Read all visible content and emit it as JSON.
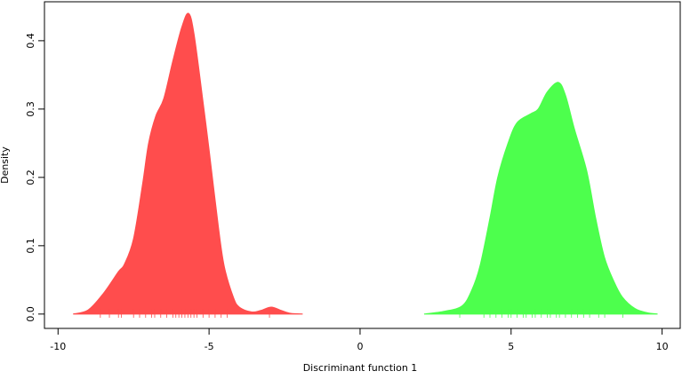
{
  "chart_data": {
    "type": "area",
    "xlabel": "Discriminant function 1",
    "ylabel": "Density",
    "xlim": [
      -10.45,
      10.6
    ],
    "ylim": [
      -0.021,
      0.457
    ],
    "xticks": [
      -10,
      -5,
      0,
      5,
      10
    ],
    "yticks": [
      {
        "value": 0,
        "label": "0.0"
      },
      0.1,
      0.2,
      0.3,
      0.4
    ],
    "series": [
      {
        "color": "#ff4d4d",
        "x": [
          -9.5,
          -9.0,
          -8.5,
          -8.0,
          -7.8,
          -7.5,
          -7.2,
          -7.0,
          -6.76,
          -6.5,
          -6.2,
          -5.9,
          -5.68,
          -5.5,
          -5.2,
          -5.0,
          -4.7,
          -4.5,
          -4.2,
          -4.0,
          -3.6,
          -3.3,
          -2.94,
          -2.6,
          -2.3,
          -1.9
        ],
        "values": [
          0.0,
          0.006,
          0.03,
          0.062,
          0.073,
          0.11,
          0.19,
          0.25,
          0.29,
          0.315,
          0.37,
          0.42,
          0.44,
          0.41,
          0.31,
          0.24,
          0.13,
          0.07,
          0.025,
          0.01,
          0.003,
          0.005,
          0.01,
          0.005,
          0.001,
          0.0
        ],
        "rug": [
          -8.6,
          -8.3,
          -8.0,
          -7.9,
          -7.5,
          -7.3,
          -7.1,
          -6.9,
          -6.8,
          -6.6,
          -6.4,
          -6.2,
          -6.1,
          -6.0,
          -5.9,
          -5.8,
          -5.7,
          -5.6,
          -5.5,
          -5.4,
          -5.2,
          -5.0,
          -4.8,
          -4.6,
          -4.4,
          -3.0
        ]
      },
      {
        "color": "#4dff4d",
        "x": [
          2.12,
          2.8,
          3.38,
          3.7,
          3.97,
          4.3,
          4.56,
          4.9,
          5.2,
          5.65,
          5.9,
          6.2,
          6.56,
          6.8,
          7.1,
          7.5,
          7.8,
          8.09,
          8.4,
          8.68,
          9.1,
          9.5,
          9.85
        ],
        "values": [
          0.0,
          0.004,
          0.012,
          0.035,
          0.07,
          0.14,
          0.2,
          0.25,
          0.28,
          0.293,
          0.3,
          0.325,
          0.339,
          0.32,
          0.27,
          0.21,
          0.14,
          0.083,
          0.048,
          0.025,
          0.008,
          0.002,
          0.0
        ],
        "rug": [
          3.3,
          4.1,
          4.3,
          4.5,
          4.7,
          4.9,
          5.0,
          5.2,
          5.4,
          5.5,
          5.7,
          5.8,
          6.0,
          6.2,
          6.3,
          6.5,
          6.6,
          6.8,
          7.0,
          7.2,
          7.4,
          7.6,
          7.9,
          8.1,
          8.7
        ]
      }
    ]
  }
}
